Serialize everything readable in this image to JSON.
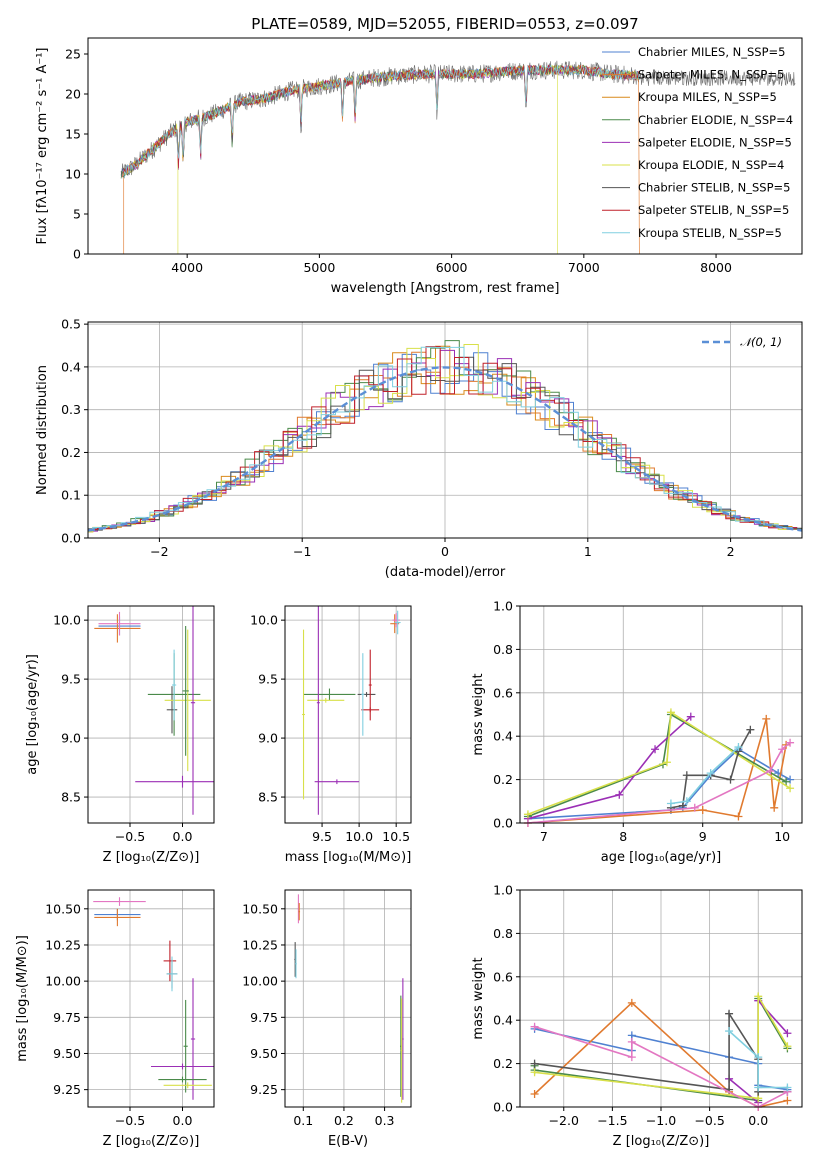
{
  "figure": {
    "title": "PLATE=0589, MJD=52055, FIBERID=0553, z=0.097"
  },
  "chart_data": [
    {
      "id": "spectrum",
      "type": "line",
      "xlabel": "wavelength [Angstrom, rest frame]",
      "ylabel": "Flux [fλ10⁻¹⁷ erg cm⁻² s⁻¹ A⁻¹]",
      "xlim": [
        3250,
        8650
      ],
      "ylim": [
        0,
        27
      ],
      "xticks": [
        4000,
        5000,
        6000,
        7000,
        8000
      ],
      "yticks": [
        0,
        5,
        10,
        15,
        20,
        25
      ],
      "legend_position": "upper right",
      "data_continuum": {
        "x": [
          3500,
          3600,
          3700,
          3800,
          3900,
          4000,
          4200,
          4400,
          4600,
          4800,
          5000,
          5200,
          5400,
          5600,
          5800,
          6000,
          6200,
          6400,
          6600,
          6800,
          7000,
          7200,
          7400
        ],
        "y": [
          10,
          11,
          12.5,
          14,
          15.5,
          16.5,
          17.5,
          19,
          19.5,
          20.5,
          21,
          21.5,
          22,
          22.3,
          22.5,
          22.5,
          22.5,
          22.8,
          23,
          23,
          23,
          22.5,
          22.3
        ]
      },
      "series": [
        {
          "name": "Chabrier MILES, N_SSP=5",
          "color": "#4f81d1"
        },
        {
          "name": "Salpeter MILES, N_SSP=5",
          "color": "#e07a2f"
        },
        {
          "name": "Kroupa MILES, N_SSP=5",
          "color": "#d98a1b"
        },
        {
          "name": "Chabrier ELODIE, N_SSP=4",
          "color": "#4a8a4a"
        },
        {
          "name": "Salpeter ELODIE, N_SSP=5",
          "color": "#9b2fb5"
        },
        {
          "name": "Kroupa ELODIE, N_SSP=4",
          "color": "#d8e04a"
        },
        {
          "name": "Chabrier STELIB, N_SSP=5",
          "color": "#555555"
        },
        {
          "name": "Salpeter STELIB, N_SSP=5",
          "color": "#c0202a"
        },
        {
          "name": "Kroupa STELIB, N_SSP=5",
          "color": "#80cfe0"
        }
      ]
    },
    {
      "id": "residuals",
      "type": "line",
      "xlabel": "(data-model)/error",
      "ylabel": "Normed distribution",
      "xlim": [
        -2.5,
        2.5
      ],
      "ylim": [
        0,
        0.505
      ],
      "xticks": [
        -2,
        -1,
        0,
        1,
        2
      ],
      "yticks": [
        0.0,
        0.1,
        0.2,
        0.3,
        0.4,
        0.5
      ],
      "grid": true,
      "legend_position": "upper right",
      "gaussian": {
        "label": "𝒩(0, 1)",
        "color": "#5b8fd6",
        "mu": 0,
        "sigma": 1
      },
      "histogram_bins": 50
    },
    {
      "id": "age-vs-Z",
      "type": "scatter",
      "xlabel": "Z [log₁₀(Z/Z⊙)]",
      "ylabel": "age  [log₁₀(age/yr)]",
      "xlim": [
        -0.9,
        0.3
      ],
      "ylim": [
        8.28,
        10.12
      ],
      "xticks": [
        -0.5,
        0.0
      ],
      "yticks": [
        8.5,
        9.0,
        9.5,
        10.0
      ],
      "grid": true,
      "points": [
        {
          "x": -0.6,
          "y": 9.95,
          "xerr": 0.2,
          "yerr": 0.08,
          "color": "#4f81d1"
        },
        {
          "x": -0.62,
          "y": 9.93,
          "xerr": 0.22,
          "yerr": 0.12,
          "color": "#e07a2f"
        },
        {
          "x": -0.6,
          "y": 9.97,
          "xerr": 0.2,
          "yerr": 0.1,
          "color": "#e377c2"
        },
        {
          "x": -0.08,
          "y": 9.37,
          "xerr": 0.25,
          "yerr": 0.35,
          "color": "#4a8a4a"
        },
        {
          "x": -0.1,
          "y": 9.24,
          "xerr": 0.05,
          "yerr": 0.2,
          "color": "#555555"
        },
        {
          "x": 0.05,
          "y": 9.32,
          "xerr": 0.22,
          "yerr": 0.6,
          "color": "#d8e04a"
        },
        {
          "x": 0.03,
          "y": 9.4,
          "xerr": 0.03,
          "yerr": 0.55,
          "color": "#4a8a4a"
        },
        {
          "x": 0.0,
          "y": 8.63,
          "xerr": 0.45,
          "yerr": 0.05,
          "color": "#9b2fb5"
        },
        {
          "x": 0.1,
          "y": 9.3,
          "xerr": 0.02,
          "yerr": 0.95,
          "color": "#9b2fb5"
        },
        {
          "x": -0.08,
          "y": 9.45,
          "xerr": 0.02,
          "yerr": 0.3,
          "color": "#80cfe0"
        }
      ]
    },
    {
      "id": "age-vs-mass",
      "type": "scatter",
      "xlabel": "mass [log₁₀(M/M⊙)]",
      "ylabel": "",
      "xlim": [
        9.0,
        10.7
      ],
      "ylim": [
        8.28,
        10.12
      ],
      "xticks": [
        9.5,
        10.0,
        10.5
      ],
      "yticks": [
        8.5,
        9.0,
        9.5,
        10.0
      ],
      "grid": true,
      "points": [
        {
          "x": 10.48,
          "y": 9.97,
          "xerr": 0.06,
          "yerr": 0.08,
          "color": "#e07a2f"
        },
        {
          "x": 10.5,
          "y": 10.0,
          "xerr": 0.05,
          "yerr": 0.06,
          "color": "#e377c2"
        },
        {
          "x": 10.52,
          "y": 9.98,
          "xerr": 0.04,
          "yerr": 0.1,
          "color": "#80cfe0"
        },
        {
          "x": 9.6,
          "y": 9.37,
          "xerr": 0.35,
          "yerr": 0.05,
          "color": "#4a8a4a"
        },
        {
          "x": 9.25,
          "y": 9.2,
          "xerr": 0.02,
          "yerr": 0.72,
          "color": "#d8e04a"
        },
        {
          "x": 9.55,
          "y": 9.32,
          "xerr": 0.25,
          "yerr": 0.02,
          "color": "#d8e04a"
        },
        {
          "x": 9.7,
          "y": 8.63,
          "xerr": 0.3,
          "yerr": 0.02,
          "color": "#9b2fb5"
        },
        {
          "x": 9.45,
          "y": 9.3,
          "xerr": 0.02,
          "yerr": 0.95,
          "color": "#9b2fb5"
        },
        {
          "x": 10.1,
          "y": 9.37,
          "xerr": 0.12,
          "yerr": 0.02,
          "color": "#555555"
        },
        {
          "x": 10.15,
          "y": 9.24,
          "xerr": 0.12,
          "yerr": 0.02,
          "color": "#c0202a"
        },
        {
          "x": 10.15,
          "y": 9.45,
          "xerr": 0.02,
          "yerr": 0.3,
          "color": "#c0202a"
        },
        {
          "x": 10.05,
          "y": 9.37,
          "xerr": 0.02,
          "yerr": 0.35,
          "color": "#80cfe0"
        }
      ]
    },
    {
      "id": "mass-weight-vs-age",
      "type": "line",
      "xlabel": "age  [log₁₀(age/yr)]",
      "ylabel": "mass weight",
      "xlim": [
        6.7,
        10.25
      ],
      "ylim": [
        0,
        1.0
      ],
      "xticks": [
        7,
        8,
        9,
        10
      ],
      "yticks": [
        0.0,
        0.2,
        0.4,
        0.6,
        0.8,
        1.0
      ],
      "grid": true,
      "series": [
        {
          "color": "#4f81d1",
          "x": [
            6.8,
            8.6,
            8.75,
            9.1,
            9.45,
            9.95,
            10.1
          ],
          "y": [
            0.02,
            0.06,
            0.07,
            0.22,
            0.34,
            0.23,
            0.2
          ]
        },
        {
          "color": "#e07a2f",
          "x": [
            6.8,
            9.0,
            9.45,
            9.8,
            9.9,
            10.05
          ],
          "y": [
            0.0,
            0.06,
            0.03,
            0.48,
            0.07,
            0.36
          ]
        },
        {
          "color": "#4a8a4a",
          "x": [
            6.8,
            8.5,
            8.6,
            10.05
          ],
          "y": [
            0.03,
            0.27,
            0.5,
            0.19
          ]
        },
        {
          "color": "#9b2fb5",
          "x": [
            6.8,
            7.95,
            8.4,
            8.85
          ],
          "y": [
            0.02,
            0.13,
            0.34,
            0.49
          ]
        },
        {
          "color": "#d8e04a",
          "x": [
            6.8,
            8.55,
            8.6,
            10.1
          ],
          "y": [
            0.04,
            0.28,
            0.51,
            0.16
          ]
        },
        {
          "color": "#555555",
          "x": [
            8.6,
            8.75,
            8.8,
            9.1,
            9.35,
            9.45,
            9.6
          ],
          "y": [
            0.07,
            0.08,
            0.22,
            0.22,
            0.2,
            0.33,
            0.43
          ]
        },
        {
          "color": "#e377c2",
          "x": [
            6.8,
            8.9,
            9.85,
            10.0,
            10.1
          ],
          "y": [
            0.0,
            0.07,
            0.24,
            0.34,
            0.37
          ]
        },
        {
          "color": "#80cfe0",
          "x": [
            8.6,
            8.8,
            9.1,
            9.45
          ],
          "y": [
            0.09,
            0.1,
            0.23,
            0.35
          ]
        }
      ]
    },
    {
      "id": "mass-vs-Z",
      "type": "scatter",
      "xlabel": "Z [log₁₀(Z/Z⊙)]",
      "ylabel": "mass [log₁₀(M/M⊙)]",
      "xlim": [
        -0.9,
        0.3
      ],
      "ylim": [
        9.13,
        10.63
      ],
      "xticks": [
        -0.5,
        0.0
      ],
      "yticks": [
        9.25,
        9.5,
        9.75,
        10.0,
        10.25,
        10.5
      ],
      "grid": true,
      "points": [
        {
          "x": -0.6,
          "y": 10.55,
          "xerr": 0.25,
          "yerr": 0.03,
          "color": "#e377c2"
        },
        {
          "x": -0.62,
          "y": 10.46,
          "xerr": 0.22,
          "yerr": 0.04,
          "color": "#4f81d1"
        },
        {
          "x": -0.62,
          "y": 10.44,
          "xerr": 0.22,
          "yerr": 0.06,
          "color": "#e07a2f"
        },
        {
          "x": -0.12,
          "y": 10.14,
          "xerr": 0.06,
          "yerr": 0.14,
          "color": "#c0202a"
        },
        {
          "x": -0.1,
          "y": 10.05,
          "xerr": 0.05,
          "yerr": 0.1,
          "color": "#555555"
        },
        {
          "x": -0.1,
          "y": 10.05,
          "xerr": 0.05,
          "yerr": 0.12,
          "color": "#80cfe0"
        },
        {
          "x": 0.1,
          "y": 9.6,
          "xerr": 0.02,
          "yerr": 0.42,
          "color": "#9b2fb5"
        },
        {
          "x": 0.0,
          "y": 9.41,
          "xerr": 0.3,
          "yerr": 0.02,
          "color": "#9b2fb5"
        },
        {
          "x": 0.03,
          "y": 9.55,
          "xerr": 0.02,
          "yerr": 0.32,
          "color": "#4a8a4a"
        },
        {
          "x": 0.0,
          "y": 9.32,
          "xerr": 0.23,
          "yerr": 0.02,
          "color": "#4a8a4a"
        },
        {
          "x": 0.05,
          "y": 9.28,
          "xerr": 0.23,
          "yerr": 0.02,
          "color": "#d8e04a"
        }
      ]
    },
    {
      "id": "mass-vs-EBV",
      "type": "scatter",
      "xlabel": "E(B-V)",
      "ylabel": "",
      "xlim": [
        0.055,
        0.365
      ],
      "ylim": [
        9.13,
        10.63
      ],
      "xticks": [
        0.1,
        0.2,
        0.3
      ],
      "yticks": [
        9.25,
        9.5,
        9.75,
        10.0,
        10.25,
        10.5
      ],
      "grid": true,
      "points": [
        {
          "x": 0.08,
          "y": 10.15,
          "xerr": 0.002,
          "yerr": 0.12,
          "color": "#555555"
        },
        {
          "x": 0.082,
          "y": 10.12,
          "xerr": 0.002,
          "yerr": 0.1,
          "color": "#80cfe0"
        },
        {
          "x": 0.088,
          "y": 10.5,
          "xerr": 0.002,
          "yerr": 0.1,
          "color": "#e377c2"
        },
        {
          "x": 0.09,
          "y": 10.48,
          "xerr": 0.002,
          "yerr": 0.06,
          "color": "#e07a2f"
        },
        {
          "x": 0.34,
          "y": 9.55,
          "xerr": 0.002,
          "yerr": 0.35,
          "color": "#4a8a4a"
        },
        {
          "x": 0.345,
          "y": 9.6,
          "xerr": 0.002,
          "yerr": 0.42,
          "color": "#9b2fb5"
        },
        {
          "x": 0.342,
          "y": 9.52,
          "xerr": 0.002,
          "yerr": 0.36,
          "color": "#d8e04a"
        }
      ]
    },
    {
      "id": "mass-weight-vs-Z",
      "type": "line",
      "xlabel": "Z [log₁₀(Z/Z⊙)]",
      "ylabel": "mass weight",
      "xlim": [
        -2.45,
        0.45
      ],
      "ylim": [
        0,
        1.0
      ],
      "xticks": [
        -2.0,
        -1.5,
        -1.0,
        -0.5,
        0.0
      ],
      "yticks": [
        0.0,
        0.2,
        0.4,
        0.6,
        0.8,
        1.0
      ],
      "grid": true,
      "series": [
        {
          "color": "#4f81d1",
          "x": [
            -2.3,
            -1.3,
            -1.3,
            -0.3,
            0.0,
            0.0,
            0.3
          ],
          "y": [
            0.36,
            0.26,
            0.33,
            0.23,
            0.2,
            0.1,
            0.08
          ]
        },
        {
          "color": "#e07a2f",
          "x": [
            -2.3,
            -1.3,
            -0.3,
            0.0,
            0.3
          ],
          "y": [
            0.06,
            0.48,
            0.07,
            0.0,
            0.03
          ]
        },
        {
          "color": "#4a8a4a",
          "x": [
            -2.3,
            -2.3,
            0.0,
            0.0,
            0.3
          ],
          "y": [
            0.19,
            0.17,
            0.03,
            0.5,
            0.27
          ]
        },
        {
          "color": "#9b2fb5",
          "x": [
            -0.3,
            0.0,
            0.0,
            0.3
          ],
          "y": [
            0.13,
            0.02,
            0.49,
            0.34
          ]
        },
        {
          "color": "#d8e04a",
          "x": [
            -2.3,
            0.0,
            0.0,
            0.3
          ],
          "y": [
            0.16,
            0.04,
            0.51,
            0.28
          ]
        },
        {
          "color": "#555555",
          "x": [
            -2.3,
            -0.3,
            -0.3,
            0.0,
            0.0,
            0.3
          ],
          "y": [
            0.2,
            0.08,
            0.43,
            0.22,
            0.07,
            0.07
          ]
        },
        {
          "color": "#e377c2",
          "x": [
            -2.3,
            -1.3,
            -1.3,
            0.0,
            0.3
          ],
          "y": [
            0.37,
            0.23,
            0.3,
            0.0,
            0.07
          ]
        },
        {
          "color": "#80cfe0",
          "x": [
            -0.3,
            0.0,
            0.0,
            0.3
          ],
          "y": [
            0.35,
            0.23,
            0.09,
            0.09
          ]
        }
      ]
    }
  ]
}
